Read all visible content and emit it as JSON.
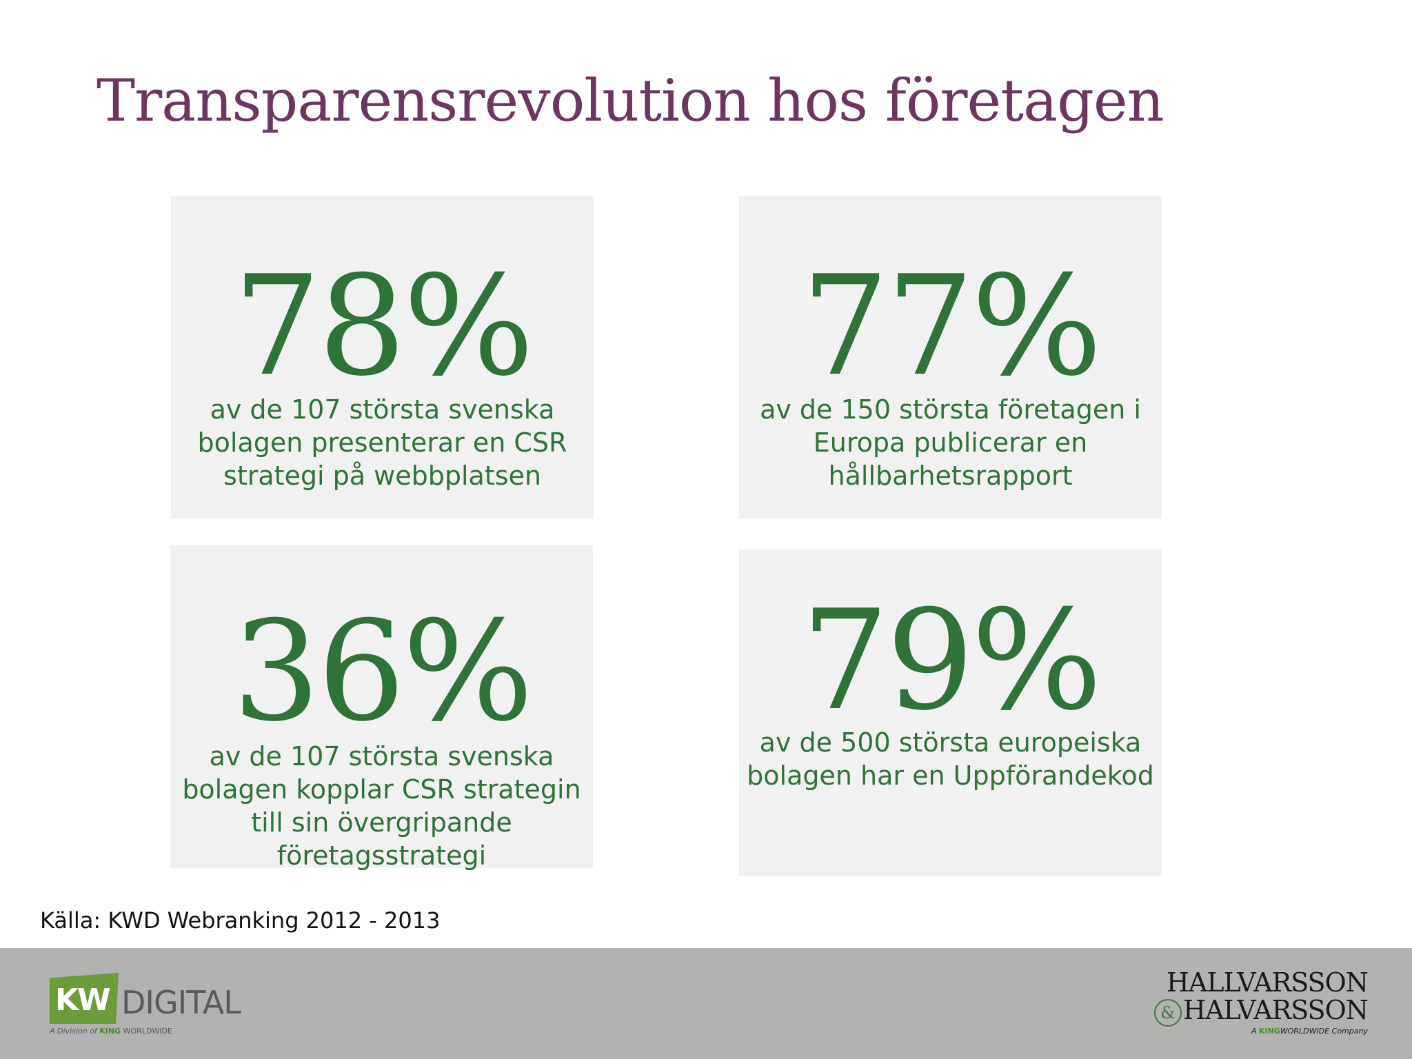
{
  "title": "Transparensrevolution hos företagen",
  "cards": [
    {
      "percent": "78%",
      "lines": [
        "av de 107 största svenska",
        "bolagen presenterar en CSR",
        "strategi på webbplatsen"
      ]
    },
    {
      "percent": "77%",
      "lines": [
        "av de 150 största företagen i",
        "Europa publicerar en",
        "hållbarhetsrapport"
      ]
    },
    {
      "percent": "36%",
      "lines": [
        "av de 107 största svenska",
        "bolagen kopplar CSR strategin",
        "till sin övergripande",
        "företagsstrategi"
      ]
    },
    {
      "percent": "79%",
      "lines": [
        "av de 500 största europeiska",
        "bolagen har en Uppförandekod"
      ]
    }
  ],
  "source": "Källa: KWD Webranking 2012 - 2013",
  "footer": {
    "kw_logo": {
      "badge": "KW",
      "name": "DIGITAL",
      "sub_prefix": "A Division of",
      "sub_brand": "KING",
      "sub_suffix": "WORLDWIDE"
    },
    "hh_logo": {
      "line1": "HALLVARSSON",
      "amp": "&",
      "line2": "HALVARSSON",
      "sub_prefix": "A",
      "sub_brand": "KING",
      "sub_suffix": "WORLDWIDE Company"
    }
  },
  "colors": {
    "title": "#6e3560",
    "accent_green": "#2e7337",
    "card_bg": "#f1f1f2",
    "footer_bg": "#b2b2b1"
  }
}
